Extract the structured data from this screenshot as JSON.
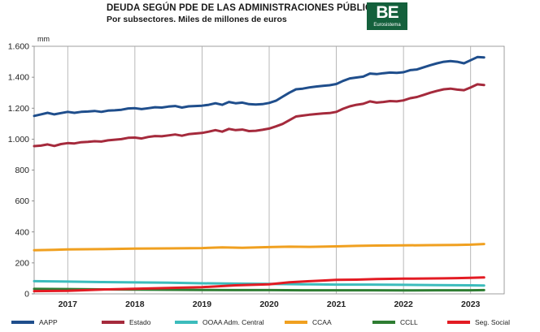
{
  "header": {
    "title": "DEUDA SEGÚN PDE DE LAS ADMINISTRACIONES PÚBLICAS",
    "subtitle": "Por subsectores. Miles de millones de euros",
    "logo_text": "BE",
    "logo_subtext": "Eurosistema",
    "logo_color": "#14603c"
  },
  "chart_data": {
    "type": "line",
    "unit_label": "mm",
    "x_labels": [
      "2017",
      "2018",
      "2019",
      "2020",
      "2021",
      "2022",
      "2023"
    ],
    "x_range": [
      2016.5,
      2023.5
    ],
    "ylim": [
      0,
      1600
    ],
    "y_ticks": [
      0,
      200,
      400,
      600,
      800,
      1000,
      1200,
      1400,
      1600
    ],
    "y_tick_labels": [
      "0",
      "200",
      "400",
      "600",
      "800",
      "1.000",
      "1.200",
      "1.400",
      "1.600"
    ],
    "grid": "vertical",
    "legend_position": "bottom",
    "series": [
      {
        "name": "AAPP",
        "color": "#1f4e8c",
        "points": [
          [
            2016.5,
            1150
          ],
          [
            2016.6,
            1160
          ],
          [
            2016.7,
            1170
          ],
          [
            2016.8,
            1160
          ],
          [
            2016.9,
            1168
          ],
          [
            2017.0,
            1176
          ],
          [
            2017.1,
            1170
          ],
          [
            2017.2,
            1176
          ],
          [
            2017.3,
            1178
          ],
          [
            2017.4,
            1182
          ],
          [
            2017.5,
            1176
          ],
          [
            2017.6,
            1184
          ],
          [
            2017.7,
            1186
          ],
          [
            2017.8,
            1190
          ],
          [
            2017.9,
            1198
          ],
          [
            2018.0,
            1200
          ],
          [
            2018.1,
            1194
          ],
          [
            2018.2,
            1200
          ],
          [
            2018.3,
            1206
          ],
          [
            2018.4,
            1204
          ],
          [
            2018.5,
            1210
          ],
          [
            2018.6,
            1214
          ],
          [
            2018.7,
            1204
          ],
          [
            2018.8,
            1212
          ],
          [
            2018.9,
            1214
          ],
          [
            2019.0,
            1216
          ],
          [
            2019.1,
            1222
          ],
          [
            2019.2,
            1232
          ],
          [
            2019.3,
            1222
          ],
          [
            2019.4,
            1240
          ],
          [
            2019.5,
            1232
          ],
          [
            2019.6,
            1236
          ],
          [
            2019.7,
            1226
          ],
          [
            2019.8,
            1224
          ],
          [
            2019.9,
            1226
          ],
          [
            2020.0,
            1234
          ],
          [
            2020.1,
            1248
          ],
          [
            2020.2,
            1274
          ],
          [
            2020.3,
            1300
          ],
          [
            2020.4,
            1322
          ],
          [
            2020.5,
            1326
          ],
          [
            2020.6,
            1334
          ],
          [
            2020.7,
            1340
          ],
          [
            2020.8,
            1344
          ],
          [
            2020.9,
            1348
          ],
          [
            2021.0,
            1356
          ],
          [
            2021.1,
            1376
          ],
          [
            2021.2,
            1392
          ],
          [
            2021.3,
            1398
          ],
          [
            2021.4,
            1404
          ],
          [
            2021.5,
            1424
          ],
          [
            2021.6,
            1420
          ],
          [
            2021.7,
            1426
          ],
          [
            2021.8,
            1430
          ],
          [
            2021.9,
            1428
          ],
          [
            2022.0,
            1432
          ],
          [
            2022.1,
            1446
          ],
          [
            2022.2,
            1450
          ],
          [
            2022.3,
            1464
          ],
          [
            2022.4,
            1478
          ],
          [
            2022.5,
            1490
          ],
          [
            2022.6,
            1500
          ],
          [
            2022.7,
            1504
          ],
          [
            2022.8,
            1500
          ],
          [
            2022.9,
            1490
          ],
          [
            2023.0,
            1510
          ],
          [
            2023.1,
            1530
          ],
          [
            2023.2,
            1528
          ]
        ]
      },
      {
        "name": "Estado",
        "color": "#a52a3c",
        "points": [
          [
            2016.5,
            955
          ],
          [
            2016.6,
            958
          ],
          [
            2016.7,
            966
          ],
          [
            2016.8,
            956
          ],
          [
            2016.9,
            968
          ],
          [
            2017.0,
            974
          ],
          [
            2017.1,
            972
          ],
          [
            2017.2,
            980
          ],
          [
            2017.3,
            982
          ],
          [
            2017.4,
            986
          ],
          [
            2017.5,
            984
          ],
          [
            2017.6,
            992
          ],
          [
            2017.7,
            996
          ],
          [
            2017.8,
            1000
          ],
          [
            2017.9,
            1008
          ],
          [
            2018.0,
            1010
          ],
          [
            2018.1,
            1004
          ],
          [
            2018.2,
            1014
          ],
          [
            2018.3,
            1020
          ],
          [
            2018.4,
            1018
          ],
          [
            2018.5,
            1024
          ],
          [
            2018.6,
            1030
          ],
          [
            2018.7,
            1022
          ],
          [
            2018.8,
            1032
          ],
          [
            2018.9,
            1036
          ],
          [
            2019.0,
            1040
          ],
          [
            2019.1,
            1048
          ],
          [
            2019.2,
            1058
          ],
          [
            2019.3,
            1048
          ],
          [
            2019.4,
            1066
          ],
          [
            2019.5,
            1058
          ],
          [
            2019.6,
            1062
          ],
          [
            2019.7,
            1052
          ],
          [
            2019.8,
            1054
          ],
          [
            2019.9,
            1060
          ],
          [
            2020.0,
            1068
          ],
          [
            2020.1,
            1082
          ],
          [
            2020.2,
            1098
          ],
          [
            2020.3,
            1122
          ],
          [
            2020.4,
            1146
          ],
          [
            2020.5,
            1152
          ],
          [
            2020.6,
            1158
          ],
          [
            2020.7,
            1162
          ],
          [
            2020.8,
            1166
          ],
          [
            2020.9,
            1168
          ],
          [
            2021.0,
            1176
          ],
          [
            2021.1,
            1196
          ],
          [
            2021.2,
            1212
          ],
          [
            2021.3,
            1222
          ],
          [
            2021.4,
            1228
          ],
          [
            2021.5,
            1244
          ],
          [
            2021.6,
            1236
          ],
          [
            2021.7,
            1240
          ],
          [
            2021.8,
            1246
          ],
          [
            2021.9,
            1244
          ],
          [
            2022.0,
            1250
          ],
          [
            2022.1,
            1264
          ],
          [
            2022.2,
            1272
          ],
          [
            2022.3,
            1286
          ],
          [
            2022.4,
            1300
          ],
          [
            2022.5,
            1312
          ],
          [
            2022.6,
            1322
          ],
          [
            2022.7,
            1326
          ],
          [
            2022.8,
            1320
          ],
          [
            2022.9,
            1316
          ],
          [
            2023.0,
            1334
          ],
          [
            2023.1,
            1354
          ],
          [
            2023.2,
            1350
          ]
        ]
      },
      {
        "name": "OOAA Adm. Central",
        "color": "#3cbcbc",
        "points": [
          [
            2016.5,
            82
          ],
          [
            2017.0,
            79
          ],
          [
            2017.5,
            76
          ],
          [
            2018.0,
            74
          ],
          [
            2018.5,
            72
          ],
          [
            2019.0,
            68
          ],
          [
            2019.5,
            66
          ],
          [
            2020.0,
            64
          ],
          [
            2020.5,
            62
          ],
          [
            2021.0,
            60
          ],
          [
            2021.5,
            60
          ],
          [
            2022.0,
            58
          ],
          [
            2022.5,
            56
          ],
          [
            2023.0,
            55
          ],
          [
            2023.2,
            54
          ]
        ]
      },
      {
        "name": "CCAA",
        "color": "#f0a020",
        "points": [
          [
            2016.5,
            282
          ],
          [
            2016.8,
            285
          ],
          [
            2017.0,
            287
          ],
          [
            2017.5,
            289
          ],
          [
            2018.0,
            292
          ],
          [
            2018.5,
            294
          ],
          [
            2019.0,
            296
          ],
          [
            2019.3,
            300
          ],
          [
            2019.6,
            298
          ],
          [
            2020.0,
            302
          ],
          [
            2020.3,
            305
          ],
          [
            2020.6,
            304
          ],
          [
            2021.0,
            307
          ],
          [
            2021.3,
            310
          ],
          [
            2021.6,
            312
          ],
          [
            2022.0,
            313
          ],
          [
            2022.4,
            315
          ],
          [
            2022.8,
            316
          ],
          [
            2023.0,
            318
          ],
          [
            2023.2,
            322
          ]
        ]
      },
      {
        "name": "CCLL",
        "color": "#2e7d32",
        "points": [
          [
            2016.5,
            32
          ],
          [
            2017.0,
            31
          ],
          [
            2017.5,
            29
          ],
          [
            2018.0,
            28
          ],
          [
            2018.5,
            26
          ],
          [
            2019.0,
            25
          ],
          [
            2019.5,
            24
          ],
          [
            2020.0,
            24
          ],
          [
            2020.5,
            23
          ],
          [
            2021.0,
            23
          ],
          [
            2021.5,
            23
          ],
          [
            2022.0,
            22
          ],
          [
            2022.5,
            23
          ],
          [
            2023.0,
            23
          ],
          [
            2023.2,
            24
          ]
        ]
      },
      {
        "name": "Seg. Social",
        "color": "#e31b23",
        "points": [
          [
            2016.5,
            18
          ],
          [
            2017.0,
            20
          ],
          [
            2017.5,
            28
          ],
          [
            2018.0,
            33
          ],
          [
            2018.5,
            38
          ],
          [
            2019.0,
            43
          ],
          [
            2019.5,
            55
          ],
          [
            2020.0,
            62
          ],
          [
            2020.3,
            75
          ],
          [
            2020.6,
            82
          ],
          [
            2020.8,
            86
          ],
          [
            2021.0,
            90
          ],
          [
            2021.3,
            92
          ],
          [
            2021.6,
            96
          ],
          [
            2022.0,
            98
          ],
          [
            2022.3,
            99
          ],
          [
            2022.6,
            100
          ],
          [
            2022.8,
            102
          ],
          [
            2023.0,
            104
          ],
          [
            2023.2,
            106
          ]
        ]
      }
    ]
  }
}
